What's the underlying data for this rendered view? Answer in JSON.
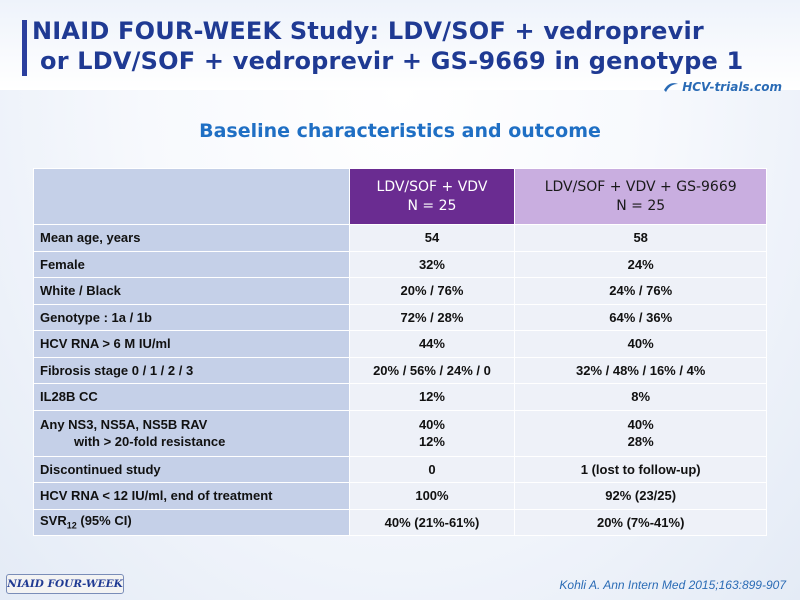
{
  "slide": {
    "title_line1": "NIAID FOUR-WEEK Study: LDV/SOF + vedroprevir",
    "title_line2": "or LDV/SOF + vedroprevir + GS-9669 in genotype 1",
    "logo_text": "HCV-trials.com",
    "subtitle": "Baseline characteristics and outcome",
    "footer_badge": "NIAID FOUR-WEEK",
    "reference": "Kohli A. Ann Intern Med 2015;163:899-907"
  },
  "colors": {
    "title": "#1f3a93",
    "subtitle": "#1f6fc4",
    "header_arm1": "#6a2c91",
    "header_arm2": "#c9aee0",
    "label_column": "#c5d0e8",
    "value_cells": "#eef1f8"
  },
  "table": {
    "headers": [
      {
        "line1": "LDV/SOF + VDV",
        "line2": "N = 25"
      },
      {
        "line1": "LDV/SOF + VDV + GS-9669",
        "line2": "N = 25"
      }
    ],
    "rows": [
      {
        "label": "Mean age, years",
        "values": [
          "54",
          "58"
        ]
      },
      {
        "label": "Female",
        "values": [
          "32%",
          "24%"
        ]
      },
      {
        "label": "White / Black",
        "values": [
          "20% / 76%",
          "24% / 76%"
        ]
      },
      {
        "label": "Genotype : 1a / 1b",
        "values": [
          "72% / 28%",
          "64% / 36%"
        ]
      },
      {
        "label": "HCV RNA > 6 M IU/ml",
        "values": [
          "44%",
          "40%"
        ]
      },
      {
        "label": "Fibrosis stage 0 / 1 / 2 / 3",
        "values": [
          "20% / 56% / 24% / 0",
          "32% / 48% / 16% / 4%"
        ]
      },
      {
        "label": "IL28B CC",
        "values": [
          "12%",
          "8%"
        ]
      }
    ],
    "rav_row": {
      "label_line1": "Any NS3, NS5A, NS5B RAV",
      "label_line2": "with > 20-fold resistance",
      "values_line1": [
        "40%",
        "40%"
      ],
      "values_line2": [
        "12%",
        "28%"
      ]
    },
    "rows_after": [
      {
        "label": "Discontinued study",
        "values": [
          "0",
          "1 (lost to follow-up)"
        ]
      },
      {
        "label": "HCV RNA < 12 IU/ml, end of treatment",
        "values": [
          "100%",
          "92% (23/25)"
        ]
      }
    ],
    "svr_row": {
      "label_main": "SVR",
      "label_sub": "12",
      "label_suffix": " (95% CI)",
      "values": [
        "40% (21%-61%)",
        "20% (7%-41%)"
      ]
    }
  }
}
